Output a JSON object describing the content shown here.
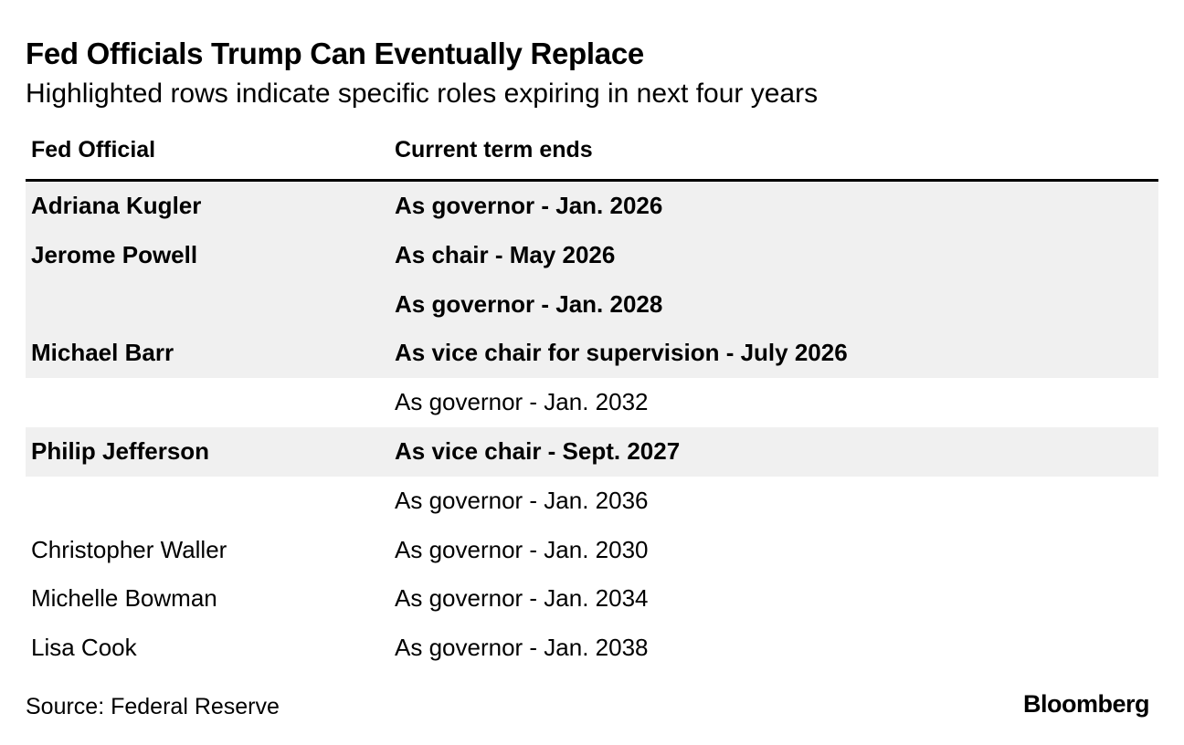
{
  "title": "Fed Officials Trump Can Eventually Replace",
  "subtitle": "Highlighted rows indicate specific roles expiring in next four years",
  "source": "Source: Federal Reserve",
  "logo": "Bloomberg",
  "colors": {
    "highlight_row": "#f0f0f0",
    "text": "#000000",
    "rule": "#000000"
  },
  "chart_data": {
    "type": "table",
    "title": "Fed Officials Trump Can Eventually Replace",
    "subtitle": "Highlighted rows indicate specific roles expiring in next four years",
    "columns": [
      "Fed Official",
      "Current term ends"
    ],
    "rows": [
      {
        "official": "Adriana Kugler",
        "term": "As governor - Jan. 2026",
        "highlighted": true
      },
      {
        "official": "Jerome Powell",
        "term": "As chair - May 2026",
        "highlighted": true
      },
      {
        "official": "",
        "term": "As governor - Jan. 2028",
        "highlighted": true
      },
      {
        "official": "Michael Barr",
        "term": "As vice chair for supervision - July 2026",
        "highlighted": true
      },
      {
        "official": "",
        "term": "As governor - Jan. 2032",
        "highlighted": false
      },
      {
        "official": "Philip Jefferson",
        "term": "As vice chair - Sept. 2027",
        "highlighted": true
      },
      {
        "official": "",
        "term": "As governor - Jan. 2036",
        "highlighted": false
      },
      {
        "official": "Christopher Waller",
        "term": "As governor - Jan. 2030",
        "highlighted": false
      },
      {
        "official": "Michelle Bowman",
        "term": "As governor - Jan. 2034",
        "highlighted": false
      },
      {
        "official": "Lisa Cook",
        "term": "As governor - Jan. 2038",
        "highlighted": false
      }
    ],
    "source": "Source: Federal Reserve"
  }
}
